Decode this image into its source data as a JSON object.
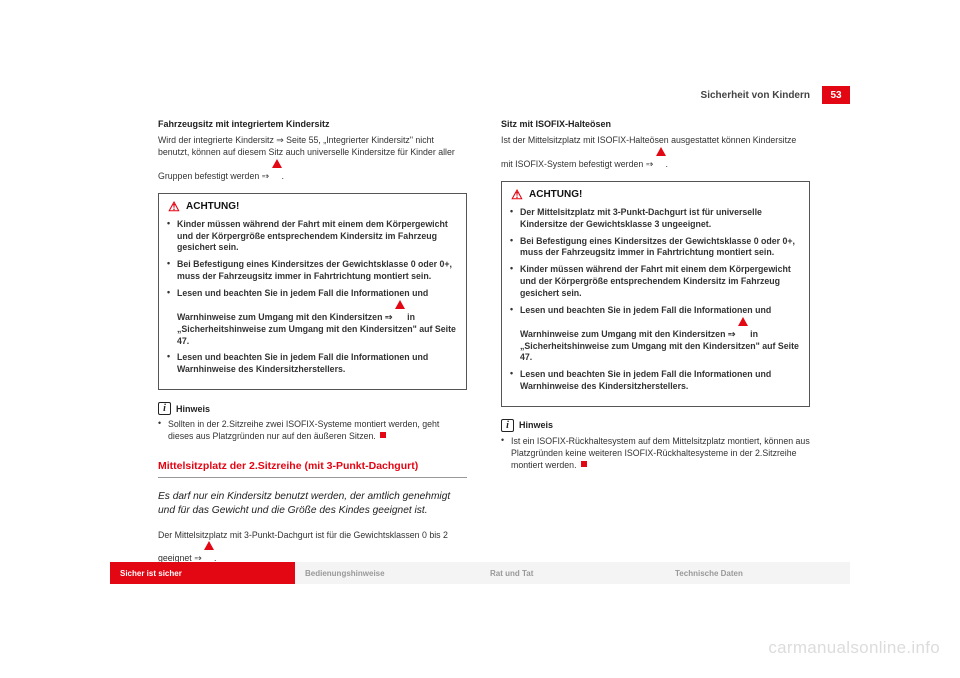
{
  "header": {
    "title": "Sicherheit von Kindern",
    "page_number": "53"
  },
  "left": {
    "sub1_title": "Fahrzeugsitz mit integriertem Kindersitz",
    "sub1_text": "Wird der integrierte Kindersitz ⇒ Seite 55, „Integrierter Kindersitz\" nicht benutzt, können auf diesem Sitz auch universelle Kindersitze für Kinder aller Gruppen befestigt werden ⇒ ",
    "achtung": {
      "label": "ACHTUNG!",
      "b1": "Kinder müssen während der Fahrt mit einem dem Körpergewicht und der Körpergröße entsprechendem Kindersitz im Fahrzeug gesichert sein.",
      "b2": "Bei Befestigung eines Kindersitzes der Gewichtsklasse 0 oder 0+, muss der Fahrzeugsitz immer in Fahrtrichtung montiert sein.",
      "b3a": "Lesen und beachten Sie in jedem Fall die Informationen und Warnhinweise zum Umgang mit den Kindersitzen ⇒ ",
      "b3b": " in „Sicherheitshinweise zum Umgang mit den Kindersitzen\" auf Seite 47.",
      "b4": "Lesen und beachten Sie in jedem Fall die Informationen und Warnhinweise des Kindersitzherstellers."
    },
    "hinweis": {
      "label": "Hinweis",
      "text": "Sollten in der 2.Sitzreihe zwei ISOFIX-Systeme montiert werden, geht dieses aus Platzgründen nur auf den äußeren Sitzen."
    },
    "section_title": "Mittelsitzplatz der 2.Sitzreihe (mit 3-Punkt-Dachgurt)",
    "lead": "Es darf nur ein Kindersitz benutzt werden, der amtlich genehmigt und für das Gewicht und die Größe des Kindes geeignet ist.",
    "tail": "Der Mittelsitzplatz mit 3-Punkt-Dachgurt ist für die Gewichtsklassen 0 bis 2 geeignet ⇒ "
  },
  "right": {
    "sub_title": "Sitz mit ISOFIX-Halteösen",
    "sub_text": "Ist der Mittelsitzplatz mit ISOFIX-Halteösen ausgestattet können Kindersitze mit ISOFIX-System befestigt werden ⇒ ",
    "achtung": {
      "label": "ACHTUNG!",
      "b1": "Der Mittelsitzplatz mit 3-Punkt-Dachgurt ist für universelle Kindersitze der Gewichtsklasse 3 ungeeignet.",
      "b2": "Bei Befestigung eines Kindersitzes der Gewichtsklasse 0 oder 0+, muss der Fahrzeugsitz immer in Fahrtrichtung montiert sein.",
      "b3": "Kinder müssen während der Fahrt mit einem dem Körpergewicht und der Körpergröße entsprechendem Kindersitz im Fahrzeug gesichert sein.",
      "b4a": "Lesen und beachten Sie in jedem Fall die Informationen und Warnhinweise zum Umgang mit den Kindersitzen ⇒ ",
      "b4b": " in „Sicherheitshinweise zum Umgang mit den Kindersitzen\" auf Seite 47.",
      "b5": "Lesen und beachten Sie in jedem Fall die Informationen und Warnhinweise des Kindersitzherstellers."
    },
    "hinweis": {
      "label": "Hinweis",
      "text": "Ist ein ISOFIX-Rückhaltesystem auf dem Mittelsitzplatz montiert, können aus Platzgründen keine weiteren ISOFIX-Rückhaltesysteme in der 2.Sitzreihe montiert werden."
    }
  },
  "footer": {
    "t1": "Sicher ist sicher",
    "t2": "Bedienungshinweise",
    "t3": "Rat und Tat",
    "t4": "Technische Daten"
  },
  "watermark": "carmanualsonline.info"
}
